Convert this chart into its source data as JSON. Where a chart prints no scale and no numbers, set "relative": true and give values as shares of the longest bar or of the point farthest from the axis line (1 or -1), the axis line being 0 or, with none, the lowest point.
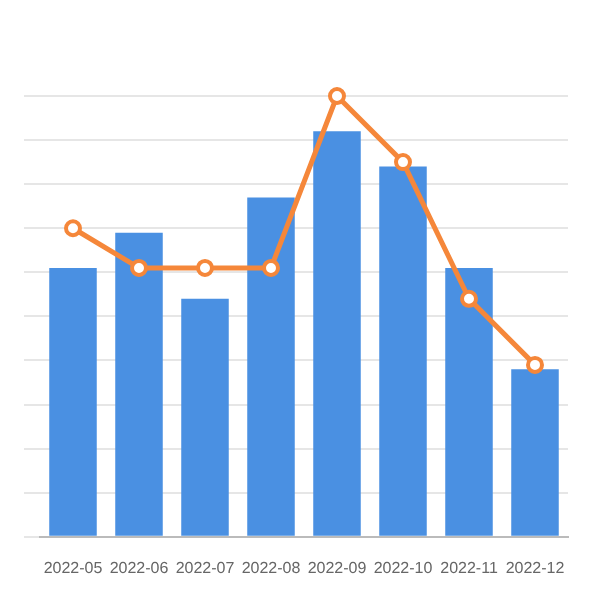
{
  "chart_data": {
    "type": "bar",
    "relative": true,
    "grid": "y",
    "marker": "circle",
    "line_style": "solid",
    "categories": [
      "2022-05",
      "2022-06",
      "2022-07",
      "2022-08",
      "2022-09",
      "2022-10",
      "2022-11",
      "2022-12"
    ],
    "series": [
      {
        "color": "#4a90e2",
        "values": [
          0.61,
          0.69,
          0.54,
          0.77,
          0.92,
          0.84,
          0.61,
          0.38
        ]
      },
      {
        "type": "line",
        "color": "#f5873a",
        "values": [
          0.7,
          0.61,
          0.61,
          0.61,
          1,
          0.85,
          0.54,
          0.39
        ]
      }
    ]
  }
}
